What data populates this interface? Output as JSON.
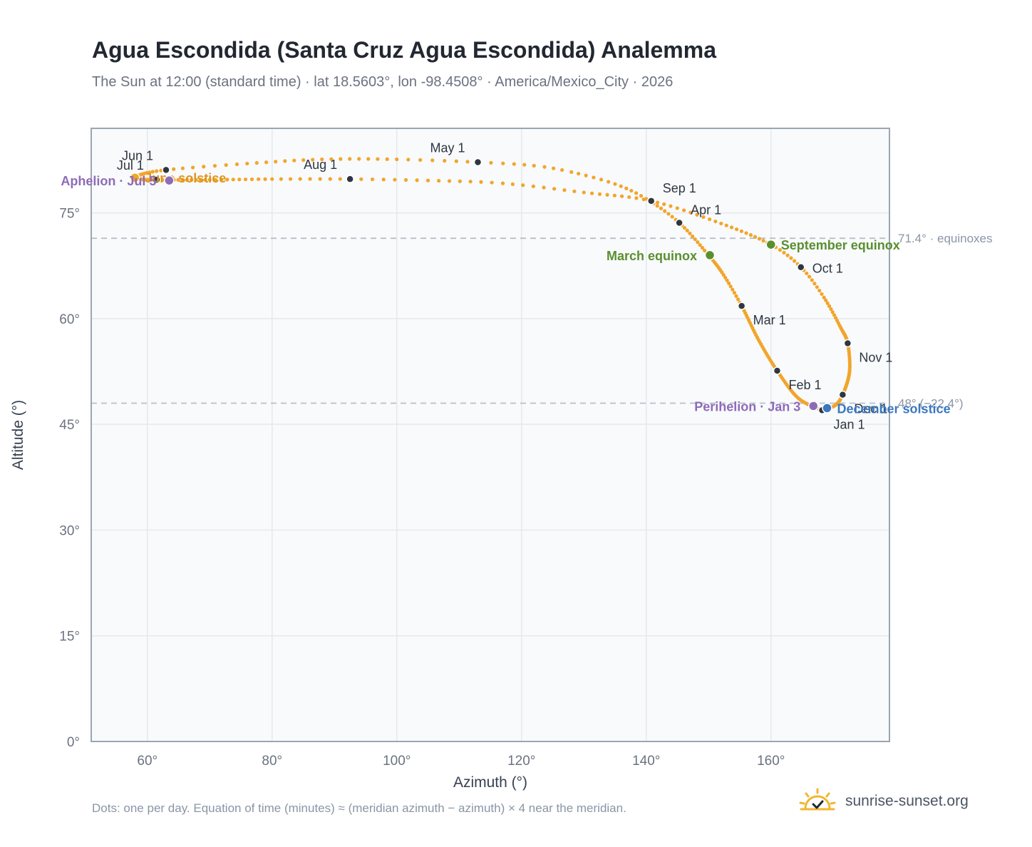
{
  "header": {
    "title": "Agua Escondida (Santa Cruz Agua Escondida) Analemma",
    "subtitle": "The Sun at 12:00 (standard time) · lat 18.5603°, lon -98.4508° · America/Mexico_City · 2026"
  },
  "footer": {
    "note": "Dots: one per day. Equation of time (minutes) ≈ (meridian azimuth − azimuth) × 4 near the meridian.",
    "brand": "sunrise-sunset.org"
  },
  "colors": {
    "curve": "#f2a52a",
    "month_marker": "#2f3640",
    "equinox": "#5a8f2e",
    "december_solstice": "#3a78bf",
    "apsis": "#8e6bb8",
    "june_solstice_label": "#e0961c",
    "grid": "#e5e9ef",
    "reference_line": "#b8c0c8",
    "plot_background": "#f8fafc",
    "frame": "#9aa6b2"
  },
  "icons": {
    "brand_logo": "sun-check-icon"
  },
  "chart_data": {
    "type": "scatter",
    "xlabel": "Azimuth (°)",
    "ylabel": "Altitude (°)",
    "xlim": [
      51,
      179
    ],
    "ylim": [
      0,
      87
    ],
    "xticks": [
      60,
      80,
      100,
      120,
      140,
      160
    ],
    "yticks": [
      0,
      15,
      30,
      45,
      60,
      75
    ],
    "xtick_labels": [
      "60°",
      "80°",
      "100°",
      "120°",
      "140°",
      "160°"
    ],
    "ytick_labels": [
      "0°",
      "15°",
      "30°",
      "45°",
      "60°",
      "75°"
    ],
    "grid": true,
    "legend": "none",
    "reference_lines": [
      {
        "y": 71.4,
        "label": "71.4° · equinoxes"
      },
      {
        "y": 48.0,
        "label": "48° (−22.4°)"
      }
    ],
    "path": [
      {
        "doy": 1,
        "az": 168.2,
        "alt": 47.0
      },
      {
        "doy": 17,
        "az": 164.4,
        "alt": 48.7
      },
      {
        "doy": 32,
        "az": 161.0,
        "alt": 52.6
      },
      {
        "doy": 46,
        "az": 158.0,
        "alt": 57.0
      },
      {
        "doy": 60,
        "az": 155.3,
        "alt": 61.8
      },
      {
        "doy": 70,
        "az": 152.4,
        "alt": 66.2
      },
      {
        "doy": 79,
        "az": 150.0,
        "alt": 69.0
      },
      {
        "doy": 91,
        "az": 145.3,
        "alt": 73.6
      },
      {
        "doy": 100,
        "az": 140.0,
        "alt": 77.0
      },
      {
        "doy": 106,
        "az": 135.0,
        "alt": 79.1
      },
      {
        "doy": 112,
        "az": 128.0,
        "alt": 80.8
      },
      {
        "doy": 116,
        "az": 122.0,
        "alt": 81.7
      },
      {
        "doy": 121,
        "az": 113.0,
        "alt": 82.2
      },
      {
        "doy": 128,
        "az": 100.0,
        "alt": 82.6
      },
      {
        "doy": 136,
        "az": 88.0,
        "alt": 82.6
      },
      {
        "doy": 144,
        "az": 76.0,
        "alt": 82.0
      },
      {
        "doy": 152,
        "az": 63.0,
        "alt": 81.1
      },
      {
        "doy": 162,
        "az": 58.5,
        "alt": 80.3
      },
      {
        "doy": 172,
        "az": 59.0,
        "alt": 79.8
      },
      {
        "doy": 182,
        "az": 61.5,
        "alt": 79.7
      },
      {
        "doy": 195,
        "az": 70.0,
        "alt": 79.7
      },
      {
        "doy": 205,
        "az": 80.0,
        "alt": 79.8
      },
      {
        "doy": 213,
        "az": 92.5,
        "alt": 79.8
      },
      {
        "doy": 220,
        "az": 105.0,
        "alt": 79.6
      },
      {
        "doy": 227,
        "az": 117.0,
        "alt": 79.2
      },
      {
        "doy": 235,
        "az": 130.0,
        "alt": 77.9
      },
      {
        "doy": 244,
        "az": 140.8,
        "alt": 76.7
      },
      {
        "doy": 255,
        "az": 152.0,
        "alt": 73.5
      },
      {
        "doy": 266,
        "az": 160.0,
        "alt": 70.5
      },
      {
        "doy": 274,
        "az": 164.8,
        "alt": 67.3
      },
      {
        "doy": 283,
        "az": 168.5,
        "alt": 63.0
      },
      {
        "doy": 294,
        "az": 171.2,
        "alt": 58.7
      },
      {
        "doy": 305,
        "az": 172.3,
        "alt": 56.5
      },
      {
        "doy": 318,
        "az": 172.6,
        "alt": 52.5
      },
      {
        "doy": 335,
        "az": 171.5,
        "alt": 49.2
      },
      {
        "doy": 345,
        "az": 170.3,
        "alt": 47.7
      },
      {
        "doy": 355,
        "az": 168.8,
        "alt": 47.3
      },
      {
        "doy": 366,
        "az": 168.2,
        "alt": 47.0
      }
    ],
    "month_markers": [
      {
        "label": "Jan 1",
        "az": 168.2,
        "alt": 47.0,
        "pos": "below-right"
      },
      {
        "label": "Feb 1",
        "az": 161.0,
        "alt": 52.6,
        "pos": "below-right"
      },
      {
        "label": "Mar 1",
        "az": 155.3,
        "alt": 61.8,
        "pos": "below-right"
      },
      {
        "label": "Apr 1",
        "az": 145.3,
        "alt": 73.6,
        "pos": "above-right"
      },
      {
        "label": "May 1",
        "az": 113.0,
        "alt": 82.2,
        "pos": "above-left"
      },
      {
        "label": "Jun 1",
        "az": 63.0,
        "alt": 81.1,
        "pos": "above-left"
      },
      {
        "label": "Jul 1",
        "az": 61.5,
        "alt": 79.7,
        "pos": "above-left"
      },
      {
        "label": "Aug 1",
        "az": 92.5,
        "alt": 79.8,
        "pos": "above-left"
      },
      {
        "label": "Sep 1",
        "az": 140.8,
        "alt": 76.7,
        "pos": "above-right"
      },
      {
        "label": "Oct 1",
        "az": 164.8,
        "alt": 67.3,
        "pos": "right"
      },
      {
        "label": "Nov 1",
        "az": 172.3,
        "alt": 56.5,
        "pos": "below-right"
      },
      {
        "label": "Dec 1",
        "az": 171.5,
        "alt": 49.2,
        "pos": "below-right"
      }
    ],
    "events": [
      {
        "label": "June solstice",
        "az": 58.0,
        "alt": 80.0,
        "kind": "june_solstice",
        "pos": "right"
      },
      {
        "label": "Aphelion · Jul 5",
        "az": 63.5,
        "alt": 79.6,
        "kind": "apsis",
        "pos": "left"
      },
      {
        "label": "March equinox",
        "az": 150.2,
        "alt": 69.0,
        "kind": "equinox",
        "pos": "left"
      },
      {
        "label": "September equinox",
        "az": 160.0,
        "alt": 70.5,
        "kind": "equinox",
        "pos": "right"
      },
      {
        "label": "Perihelion · Jan 3",
        "az": 166.8,
        "alt": 47.6,
        "kind": "apsis",
        "pos": "left"
      },
      {
        "label": "December solstice",
        "az": 169.0,
        "alt": 47.3,
        "kind": "december_solstice",
        "pos": "right"
      }
    ]
  }
}
